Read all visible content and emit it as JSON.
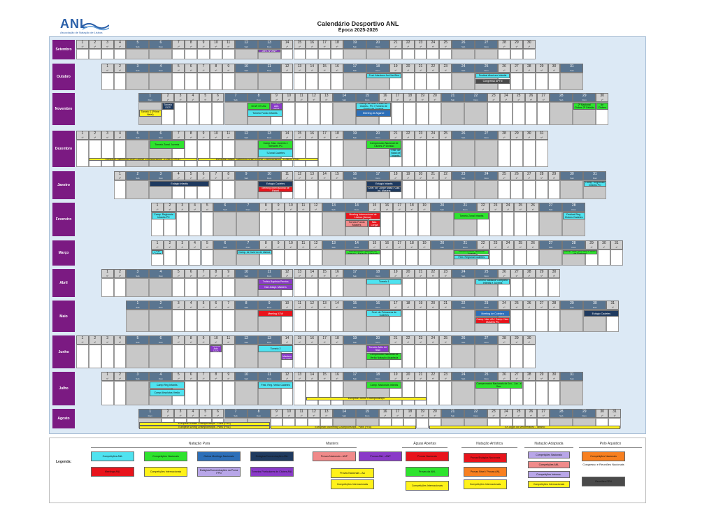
{
  "header": {
    "logo": "ANL",
    "logo_sub": "Associação de Natação de Lisboa",
    "title": "Calendário Desportivo ANL",
    "subtitle": "Época 2025-2026"
  },
  "months": [
    {
      "name": "Setembro",
      "start": 0,
      "days": 30,
      "wd_start": 1
    },
    {
      "name": "Outubro",
      "start": 2,
      "days": 31,
      "wd_start": 3
    },
    {
      "name": "Novembro",
      "start": 5,
      "days": 30,
      "wd_start": 6
    },
    {
      "name": "Dezembro",
      "start": 0,
      "days": 31,
      "wd_start": 1
    },
    {
      "name": "Janeiro",
      "start": 3,
      "days": 31,
      "wd_start": 4
    },
    {
      "name": "Fevereiro",
      "start": 6,
      "days": 28,
      "wd_start": 0
    },
    {
      "name": "Março",
      "start": 6,
      "days": 31,
      "wd_start": 0
    },
    {
      "name": "Abril",
      "start": 2,
      "days": 30,
      "wd_start": 3
    },
    {
      "name": "Maio",
      "start": 4,
      "days": 31,
      "wd_start": 5
    },
    {
      "name": "Junho",
      "start": 0,
      "days": 30,
      "wd_start": 1
    },
    {
      "name": "Julho",
      "start": 2,
      "days": 31,
      "wd_start": 3
    },
    {
      "name": "Agosto",
      "start": 5,
      "days": 31,
      "wd_start": 6
    }
  ],
  "weekday_short": [
    "2ª",
    "3ª",
    "4ª",
    "5ª",
    "6ª",
    "Sab",
    "Dom"
  ],
  "events": [
    {
      "m": 0,
      "d": 13,
      "span": 1,
      "row": 0,
      "color": "c-purple",
      "text": "Jorn. Nº ANP"
    },
    {
      "m": 1,
      "d": 18,
      "span": 2,
      "row": 0,
      "color": "c-cyan",
      "text": "Fest. Abertura Juv/Jun/Sen"
    },
    {
      "m": 1,
      "d": 25,
      "span": 2,
      "row": 0,
      "color": "c-cyan",
      "text": "Festival Abertura Infantis"
    },
    {
      "m": 1,
      "d": 25,
      "span": 2,
      "row": 1,
      "color": "c-dark",
      "text": "Congresso APTN"
    },
    {
      "m": 2,
      "d": 1,
      "span": 1,
      "row": 1,
      "color": "c-yellow",
      "text": "Torneio 1 (Prime Natal)"
    },
    {
      "m": 2,
      "d": 2,
      "span": 1,
      "row": 0,
      "color": "c-navy",
      "text": "Torneio ECP"
    },
    {
      "m": 2,
      "d": 8,
      "span": 1,
      "row": 0,
      "color": "c-green",
      "text": "GCW / El Zar"
    },
    {
      "m": 2,
      "d": 9,
      "span": 1,
      "row": 0,
      "color": "c-purple",
      "text": "Torneio Adv. NEM"
    },
    {
      "m": 2,
      "d": 8,
      "span": 2,
      "row": 1,
      "color": "c-cyan",
      "text": "Torneio Fundo Infantis"
    },
    {
      "m": 2,
      "d": 15,
      "span": 2,
      "row": 0,
      "color": "c-cyan",
      "text": "Camp. de Nac. e Ass. de Clubes - PC / Torneio de Fundo de Juvenis"
    },
    {
      "m": 2,
      "d": 15,
      "span": 2,
      "row": 1,
      "color": "c-blue",
      "text": "Meeting de Algarve"
    },
    {
      "m": 2,
      "d": 29,
      "span": 1,
      "row": 0,
      "color": "c-green",
      "text": "2ª Nacional Clubes 2ª Divisão"
    },
    {
      "m": 2,
      "d": 30,
      "span": 1,
      "row": 0,
      "color": "c-green",
      "text": "Campeonato Nacional de Clubes 1ª Divisão"
    },
    {
      "m": 3,
      "d": 6,
      "span": 2,
      "row": 0,
      "color": "c-green",
      "text": "Torneio Zonal Juvenis"
    },
    {
      "m": 3,
      "d": 13,
      "span": 2,
      "row": 0,
      "color": "c-green",
      "text": "Camp. Nac. Juvenis e Séniores PC"
    },
    {
      "m": 3,
      "d": 13,
      "span": 2,
      "row": 1,
      "color": "c-cyan",
      "text": "T.Zonal Cadetes"
    },
    {
      "m": 3,
      "d": 20,
      "span": 2,
      "row": 0,
      "color": "c-green",
      "text": "Campeonato Nacional de Clubes 2ª Divisão"
    },
    {
      "m": 3,
      "d": 21,
      "span": 1,
      "row": 1,
      "color": "c-cyan",
      "text": "Fest. de Natal de Infantis"
    },
    {
      "m": 4,
      "d": 3,
      "span": 4,
      "row": 0,
      "color": "c-navy",
      "text": "Estágio Infantis"
    },
    {
      "m": 4,
      "d": 10,
      "span": 2,
      "row": 0,
      "color": "c-navy",
      "text": "Estágio Cadetes"
    },
    {
      "m": 4,
      "d": 10,
      "span": 2,
      "row": 1,
      "color": "c-red",
      "text": "Meeting Internacional de Estoril"
    },
    {
      "m": 4,
      "d": 17,
      "span": 2,
      "row": 0,
      "color": "c-navy",
      "text": "Estágio Infantis"
    },
    {
      "m": 4,
      "d": 17,
      "span": 2,
      "row": 1,
      "color": "c-navy",
      "text": "CNN Tor. Júnior Masc / Cad. Inf. Masters"
    },
    {
      "m": 4,
      "d": 31,
      "span": 1,
      "row": 0,
      "color": "c-cyan",
      "text": "Camp. Regionais Infantis PC"
    },
    {
      "m": 5,
      "d": 1,
      "span": 2,
      "row": 0,
      "color": "c-cyan",
      "text": "Camp. Regionais Infantis PC"
    },
    {
      "m": 5,
      "d": 14,
      "span": 2,
      "row": 0,
      "color": "c-red",
      "text": "Meeting Internacional de Lisboa (Jamor)"
    },
    {
      "m": 5,
      "d": 14,
      "span": 1,
      "row": 1,
      "color": "c-salmon",
      "text": "Torneio Fundo Masters"
    },
    {
      "m": 5,
      "d": 15,
      "span": 1,
      "row": 1,
      "color": "c-red",
      "text": "Camp. Nac. Longa Dist."
    },
    {
      "m": 5,
      "d": 21,
      "span": 2,
      "row": 0,
      "color": "c-green",
      "text": "Torneio Zonal Infantis"
    },
    {
      "m": 5,
      "d": 28,
      "span": 1,
      "row": 0,
      "color": "c-cyan",
      "text": "Festival Reg. Clubes Cadetes"
    },
    {
      "m": 6,
      "d": 1,
      "span": 1,
      "row": 0,
      "color": "c-cyan",
      "text": "Festival Reg. Clubes Cadetes"
    },
    {
      "m": 6,
      "d": 7,
      "span": 2,
      "row": 0,
      "color": "c-cyan",
      "text": "Camp. de Inverno de Lisboa"
    },
    {
      "m": 6,
      "d": 14,
      "span": 2,
      "row": 0,
      "color": "c-green",
      "text": "Campeonato Nacional de Inverno / Natação Adaptada"
    },
    {
      "m": 6,
      "d": 21,
      "span": 2,
      "row": 0,
      "color": "c-green",
      "text": "Campeonatos Nacional Juvenis"
    },
    {
      "m": 6,
      "d": 21,
      "span": 2,
      "row": 1,
      "color": "c-cyan",
      "text": "Fest. Regional Cadetes"
    },
    {
      "m": 6,
      "d": 28,
      "span": 2,
      "row": 0,
      "color": "c-green",
      "text": "Camp. Nac. Juv. Abs e Open de Portugal"
    },
    {
      "m": 7,
      "d": 11,
      "span": 2,
      "row": 0,
      "color": "c-purple",
      "text": "Troféu Baptista Pereira"
    },
    {
      "m": 7,
      "d": 11,
      "span": 2,
      "row": 1,
      "color": "c-purple",
      "text": "Nat. Adapt. Masters"
    },
    {
      "m": 7,
      "d": 18,
      "span": 2,
      "row": 0,
      "color": "c-cyan",
      "text": "Torneio 1"
    },
    {
      "m": 7,
      "d": 25,
      "span": 2,
      "row": 0,
      "color": "c-cyan",
      "text": "Torneio Nadador Completo Infantis e Juvenis"
    },
    {
      "m": 8,
      "d": 9,
      "span": 2,
      "row": 0,
      "color": "c-red",
      "text": "Meeting XXVI"
    },
    {
      "m": 8,
      "d": 16,
      "span": 2,
      "row": 0,
      "color": "c-cyan",
      "text": "Fest. de Primavera de Cadetes"
    },
    {
      "m": 8,
      "d": 23,
      "span": 2,
      "row": 0,
      "color": "c-blue",
      "text": "Meeting de Coimbra"
    },
    {
      "m": 8,
      "d": 23,
      "span": 2,
      "row": 1,
      "color": "c-red",
      "text": "Camp. Nac. AA / Camp. Nac. Masters PC"
    },
    {
      "m": 8,
      "d": 30,
      "span": 2,
      "row": 0,
      "color": "c-navy",
      "text": "Estágio Cadetes"
    },
    {
      "m": 9,
      "d": 10,
      "span": 1,
      "row": 0,
      "color": "c-purple",
      "text": "Torneio Adv. NAD"
    },
    {
      "m": 9,
      "d": 13,
      "span": 2,
      "row": 0,
      "color": "c-cyan",
      "text": "Torneio 2"
    },
    {
      "m": 9,
      "d": 14,
      "span": 1,
      "row": 1,
      "color": "c-purple",
      "text": "Torneio Masters de SAD"
    },
    {
      "m": 9,
      "d": 20,
      "span": 1,
      "row": 0,
      "color": "c-purple",
      "text": "Torneio Artis. de SAD"
    },
    {
      "m": 9,
      "d": 20,
      "span": 2,
      "row": 1,
      "color": "c-green",
      "text": "Campeonato Nacional de Verão Natação Adaptada"
    },
    {
      "m": 10,
      "d": 4,
      "span": 2,
      "row": 0,
      "color": "c-cyan",
      "text": "Camp Reg Infantis"
    },
    {
      "m": 10,
      "d": 4,
      "span": 2,
      "row": 1,
      "color": "c-cyan",
      "text": "Camp Absolutos Verão"
    },
    {
      "m": 10,
      "d": 11,
      "span": 2,
      "row": 0,
      "color": "c-cyan",
      "text": "Fest. Reg. Verão Cadetes"
    },
    {
      "m": 10,
      "d": 18,
      "span": 2,
      "row": 0,
      "color": "c-green",
      "text": "Camp. Nacionais Infantis"
    },
    {
      "m": 10,
      "d": 25,
      "span": 3,
      "row": 0,
      "color": "c-green",
      "text": "Campeonatos Nacionais de Juv., Jun., e Sen."
    }
  ],
  "bars": [
    {
      "m": 3,
      "d": 2,
      "span": 7,
      "row": 2,
      "color": "c-yellow",
      "text": "European Swimming Short Course Championships - LUBLIN (POL)"
    },
    {
      "m": 3,
      "d": 9,
      "span": 8,
      "row": 2,
      "color": "c-yellow",
      "text": "European Master Swimming Short Course Championships - LUBLIN (POL)"
    },
    {
      "m": 10,
      "d": 14,
      "span": 8,
      "row": 2,
      "color": "c-yellow",
      "text": "European Junior Championships"
    },
    {
      "m": 11,
      "d": 1,
      "span": 8,
      "row": 1,
      "color": "c-yellow",
      "text": "European Artistic Championships - Paris (FRA)"
    },
    {
      "m": 11,
      "d": 1,
      "span": 8,
      "row": 2,
      "color": "c-yellow",
      "text": "European Diving Championships - Paris (FRA)"
    },
    {
      "m": 11,
      "d": 9,
      "span": 10,
      "row": 2,
      "color": "c-yellow",
      "text": "European Swimming Championships - Paris (FRA)"
    },
    {
      "m": 11,
      "d": 20,
      "span": 12,
      "row": 2,
      "color": "c-yellow",
      "text": "XX Jogos do Mediterrâneo - Taranto"
    }
  ],
  "legend": {
    "label": "Legenda:",
    "groups": [
      {
        "title": "Natação Pura"
      },
      {
        "title": "Masters"
      },
      {
        "title": "Águas Abertas"
      },
      {
        "title": "Natação Artística"
      },
      {
        "title": "Natação Adaptada"
      },
      {
        "title": "Polo Aquático"
      }
    ],
    "items": [
      {
        "color": "c-cyan",
        "text": "Competições ANL"
      },
      {
        "color": "c-green",
        "text": "Competições Nacionais"
      },
      {
        "color": "c-blue",
        "text": "Outros Meetings Nacionais"
      },
      {
        "color": "c-navy",
        "text": "Estágios/Concentrações ANL"
      },
      {
        "color": "c-red",
        "text": "Meetings ANL"
      },
      {
        "color": "c-yellow",
        "text": "Competições Internacionais"
      },
      {
        "color": "c-lilac",
        "text": "Estágios/Concentrações na Prova FPN"
      },
      {
        "color": "c-purple",
        "text": "Torneios Particulares de Clubes ANL"
      },
      {
        "color": "c-salmon",
        "text": "Provas Nacionais - ANP"
      },
      {
        "color": "c-purple",
        "text": "Provas ANL - ANP"
      },
      {
        "color": "c-yellow",
        "text": "Provas Nacionais - AA"
      },
      {
        "color": "c-yellow",
        "text": "Competições Internacionais"
      },
      {
        "color": "c-red",
        "text": "Provas Nacionais"
      },
      {
        "color": "c-green",
        "text": "Provas da ANL"
      },
      {
        "color": "c-yellow",
        "text": "Competições Internacionais"
      },
      {
        "color": "c-red",
        "text": "Provas/Estágios Nacionais"
      },
      {
        "color": "c-orange",
        "text": "Provas Nível / Provas ANL"
      },
      {
        "color": "c-yellow",
        "text": "Competições Internacionais"
      },
      {
        "color": "c-lilac",
        "text": "Competições Nacionais"
      },
      {
        "color": "c-salmon",
        "text": "Competições ANL"
      },
      {
        "color": "c-lilac",
        "text": "Competições Internac."
      },
      {
        "color": "c-yellow",
        "text": "Competições Internacionais"
      },
      {
        "color": "c-orange",
        "text": "Competições Nacionais"
      },
      {
        "color": "c-dark",
        "text": "Reuniões FPN"
      }
    ],
    "congress": "Congresso e Reuniões Nacionais"
  }
}
